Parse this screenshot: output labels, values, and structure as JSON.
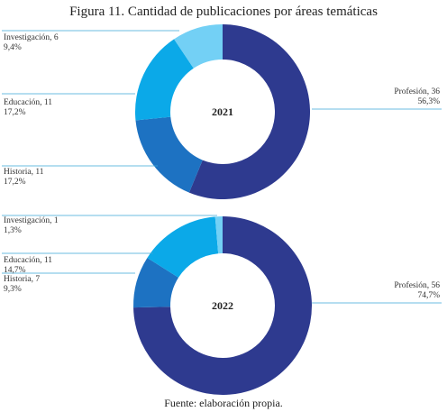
{
  "title": "Figura 11. Cantidad de publicaciones por áreas temáticas",
  "source": "Fuente: elaboración propia.",
  "colors": {
    "profesion": "#2e3a8f",
    "historia": "#1d72c2",
    "educacion": "#0ba9e8",
    "investigacion": "#73d0f5",
    "leader": "#3aa7d8"
  },
  "chart_data": [
    {
      "type": "pie",
      "center_label": "2021",
      "categories": [
        "Profesión",
        "Historia",
        "Educación",
        "Investigación"
      ],
      "values": [
        36,
        11,
        11,
        6
      ],
      "percent_labels": [
        "56,3%",
        "17,2%",
        "17,2%",
        "9,4%"
      ],
      "labels": [
        "Profesión, 36",
        "Historia, 11",
        "Educación, 11",
        "Investigación, 6"
      ]
    },
    {
      "type": "pie",
      "center_label": "2022",
      "categories": [
        "Profesión",
        "Historia",
        "Educación",
        "Investigación"
      ],
      "values": [
        56,
        7,
        11,
        1
      ],
      "percent_labels": [
        "74,7%",
        "9,3%",
        "14,7%",
        "1,3%"
      ],
      "labels": [
        "Profesión, 56",
        "Historia, 7",
        "Educación, 11",
        "Investigación, 1"
      ]
    }
  ]
}
